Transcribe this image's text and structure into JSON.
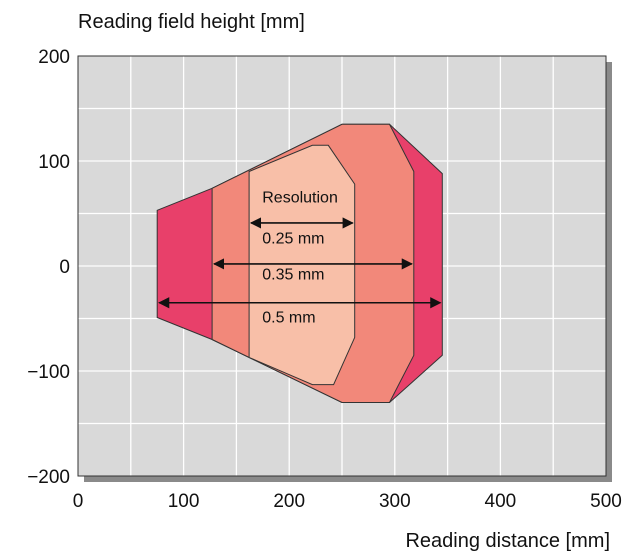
{
  "chart_data": {
    "type": "area",
    "title": "",
    "xlabel": "Reading distance  [mm]",
    "ylabel": "Reading field height [mm]",
    "xlim": [
      0,
      500
    ],
    "ylim": [
      -200,
      200
    ],
    "x_ticks": [
      "0",
      "100",
      "200",
      "300",
      "400",
      "500"
    ],
    "y_ticks": [
      "200",
      "100",
      "0",
      "−100",
      "−200"
    ],
    "x_tick_values": [
      0,
      100,
      200,
      300,
      400,
      500
    ],
    "y_tick_values": [
      200,
      100,
      0,
      -100,
      -200
    ],
    "grid": true,
    "grid_step": {
      "x": 50,
      "y": 50
    },
    "plot_background": "#d9d9d9",
    "annotation_heading": "Resolution",
    "regions": [
      {
        "name": "0.5 mm",
        "color": "#e8406a",
        "polygon": [
          [
            75,
            53
          ],
          [
            127,
            74
          ],
          [
            250,
            135
          ],
          [
            295,
            135
          ],
          [
            345,
            88
          ],
          [
            345,
            -85
          ],
          [
            295,
            -130
          ],
          [
            250,
            -130
          ],
          [
            127,
            -70
          ],
          [
            75,
            -49
          ]
        ],
        "arrow": {
          "from": 75,
          "to": 345,
          "y": -35
        },
        "label_anchor": [
          165,
          -48
        ]
      },
      {
        "name": "0.35 mm",
        "color": "#f2887a",
        "polygon": [
          [
            127,
            74
          ],
          [
            250,
            135
          ],
          [
            295,
            135
          ],
          [
            318,
            90
          ],
          [
            318,
            -85
          ],
          [
            295,
            -130
          ],
          [
            250,
            -130
          ],
          [
            127,
            -70
          ]
        ],
        "arrow": {
          "from": 127,
          "to": 318,
          "y": 2
        },
        "label_anchor": [
          165,
          -7
        ]
      },
      {
        "name": "0.25 mm",
        "color": "#f8bfa8",
        "polygon": [
          [
            162,
            90
          ],
          [
            222,
            115
          ],
          [
            237,
            115
          ],
          [
            262,
            78
          ],
          [
            262,
            -68
          ],
          [
            242,
            -113
          ],
          [
            222,
            -113
          ],
          [
            162,
            -87
          ]
        ],
        "arrow": {
          "from": 162,
          "to": 262,
          "y": 41
        },
        "label_anchor": [
          165,
          27
        ]
      }
    ],
    "heading_anchor": [
      165,
      66
    ]
  }
}
